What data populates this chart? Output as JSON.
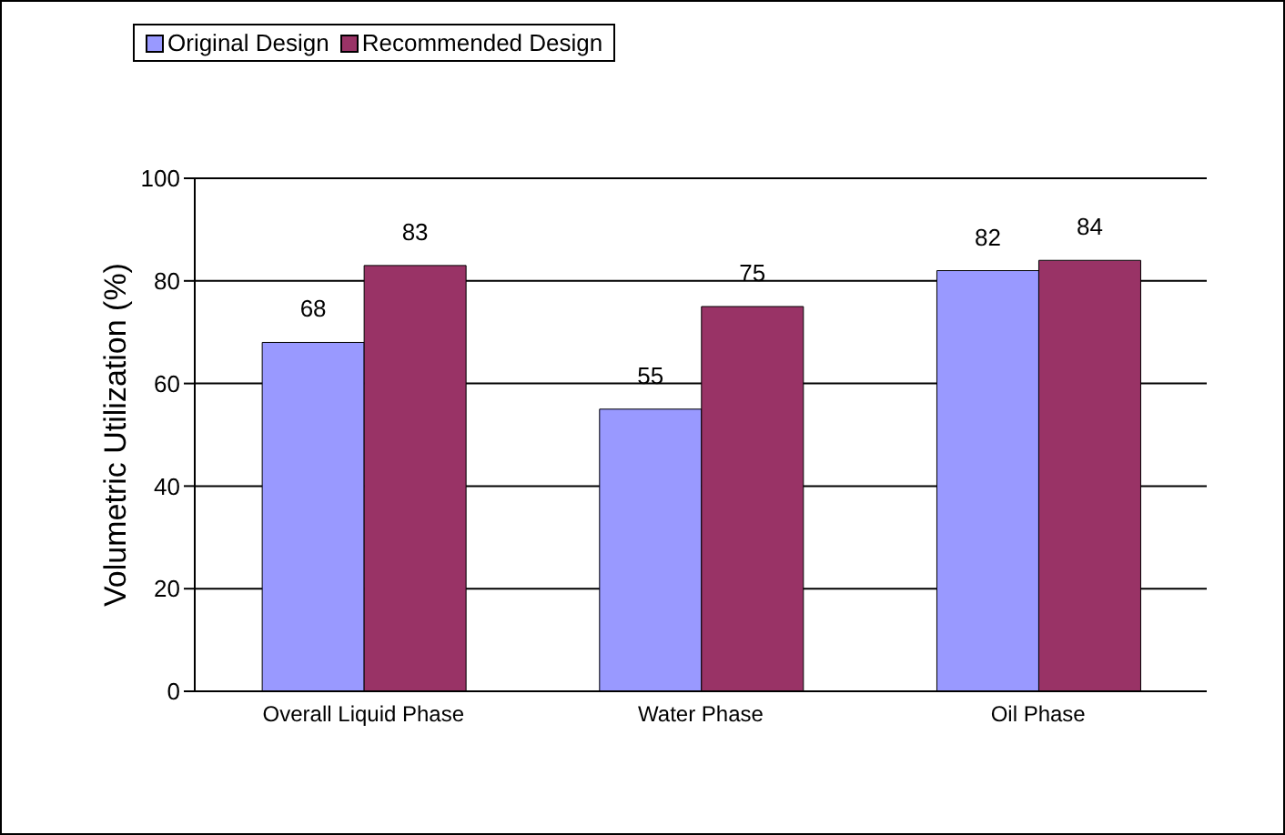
{
  "chart_data": {
    "type": "bar",
    "categories": [
      "Overall Liquid Phase",
      "Water Phase",
      "Oil Phase"
    ],
    "ylabel": "Volumetric Utilization (%)",
    "series": [
      {
        "name": "Original Design",
        "color": "#9999ff",
        "values": [
          68,
          55,
          82
        ]
      },
      {
        "name": "Recommended Design",
        "color": "#993366",
        "values": [
          83,
          75,
          84
        ]
      }
    ],
    "ylim": [
      0,
      100
    ],
    "yticks": [
      0,
      20,
      40,
      60,
      80,
      100
    ],
    "grid": "y",
    "legend": "top",
    "data_labels": true
  }
}
